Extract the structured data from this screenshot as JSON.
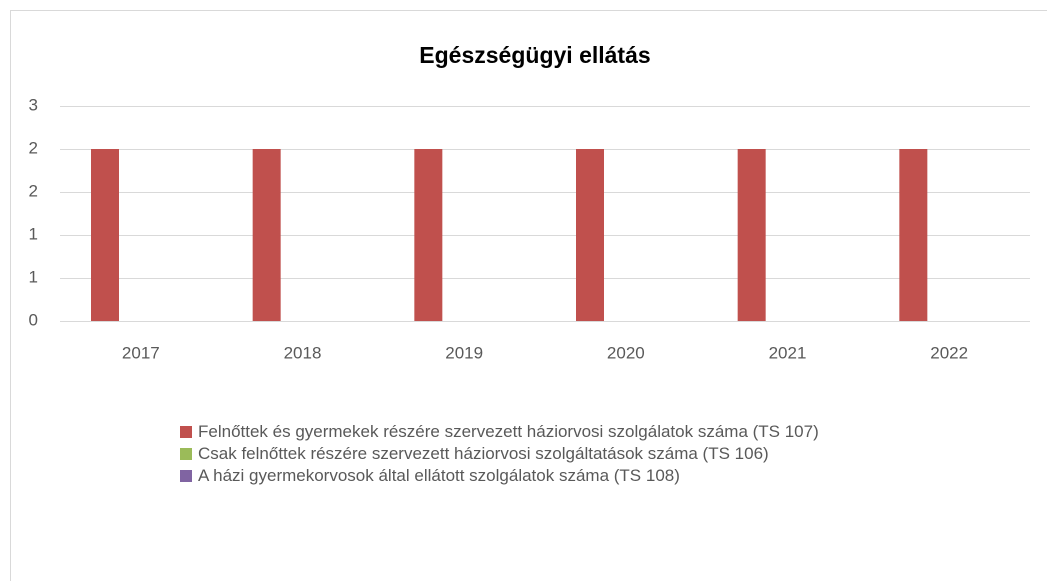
{
  "chart_data": {
    "type": "bar",
    "title": "Egészségügyi ellátás",
    "categories": [
      "2017",
      "2018",
      "2019",
      "2020",
      "2021",
      "2022"
    ],
    "series": [
      {
        "name": "Felnőttek és gyermekek részére szervezett háziorvosi szolgálatok száma (TS 107)",
        "color": "#c0504d",
        "values": [
          2,
          2,
          2,
          2,
          2,
          2
        ]
      },
      {
        "name": "Csak felnőttek részére szervezett háziorvosi szolgáltatások száma (TS 106)",
        "color": "#9bbb59",
        "values": [
          0,
          0,
          0,
          0,
          0,
          0
        ]
      },
      {
        "name": "A házi gyermekorvosok által ellátott szolgálatok száma (TS 108)",
        "color": "#8064a2",
        "values": [
          0,
          0,
          0,
          0,
          0,
          0
        ]
      }
    ],
    "ylim": [
      0,
      2.5
    ],
    "yticks": [
      0,
      {
        "value": 0.5,
        "label": "1"
      },
      1,
      {
        "value": 1.5,
        "label": "2"
      },
      2,
      {
        "value": 2.5,
        "label": "3"
      }
    ],
    "grid": true,
    "legend": "bottom"
  }
}
